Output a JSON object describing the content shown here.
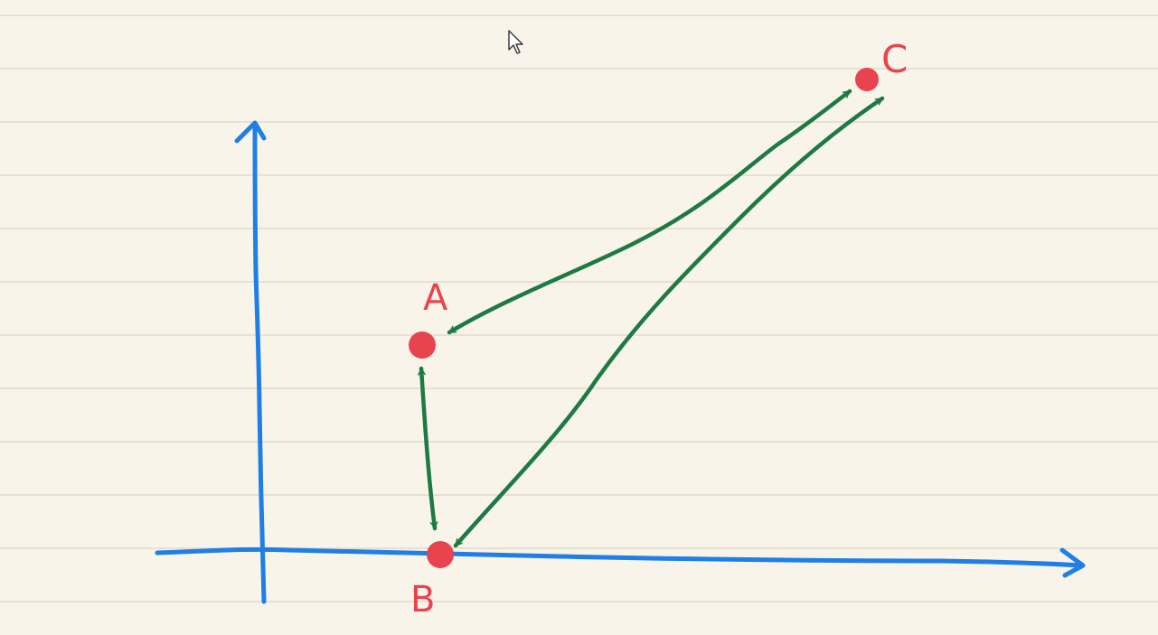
{
  "colors": {
    "paper": "#f8f4ea",
    "ruled_line": "#e7e1d2",
    "axis": "#1f7fe6",
    "point": "#e8444f",
    "arrow": "#1e7a44"
  },
  "diagram": {
    "points": [
      {
        "id": "A",
        "label": "A"
      },
      {
        "id": "B",
        "label": "B"
      },
      {
        "id": "C",
        "label": "C"
      }
    ],
    "connections": [
      {
        "from": "A",
        "to": "B",
        "style": "double-arrow"
      },
      {
        "from": "A",
        "to": "C",
        "style": "double-arrow"
      },
      {
        "from": "B",
        "to": "C",
        "style": "double-arrow"
      }
    ],
    "axes": {
      "x_arrow": true,
      "y_arrow": true
    }
  },
  "cursor": {
    "icon": "mouse-pointer-icon"
  }
}
